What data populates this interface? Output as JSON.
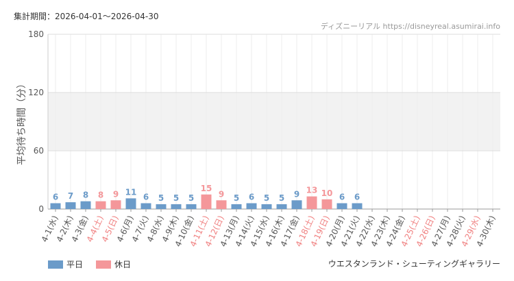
{
  "chart_data": {
    "type": "bar",
    "title": "集計期間：2026-04-01〜2026-04-30",
    "source": "ディズニーリアル https://disneyreal.asumirai.info",
    "subtitle": "ウエスタンランド・シューティングギャラリー",
    "y_label": "平均待ち時間（分）",
    "categories": [
      "4-1(水)",
      "4-2(木)",
      "4-3(金)",
      "4-4(土)",
      "4-5(日)",
      "4-6(月)",
      "4-7(火)",
      "4-8(水)",
      "4-9(木)",
      "4-10(金)",
      "4-11(土)",
      "4-12(日)",
      "4-13(月)",
      "4-14(火)",
      "4-15(水)",
      "4-16(木)",
      "4-17(金)",
      "4-18(土)",
      "4-19(日)",
      "4-20(月)",
      "4-21(火)",
      "4-22(水)",
      "4-23(木)",
      "4-24(金)",
      "4-25(土)",
      "4-26(日)",
      "4-27(月)",
      "4-28(火)",
      "4-29(水)",
      "4-30(木)"
    ],
    "label_colors": [
      "#555",
      "#555",
      "#555",
      "#f08080",
      "#f08080",
      "#555",
      "#555",
      "#555",
      "#555",
      "#555",
      "#f08080",
      "#f08080",
      "#555",
      "#555",
      "#555",
      "#555",
      "#555",
      "#f08080",
      "#f08080",
      "#555",
      "#555",
      "#555",
      "#555",
      "#555",
      "#f08080",
      "#f08080",
      "#555",
      "#555",
      "#f08080",
      "#555"
    ],
    "series": [
      {
        "name": "平日",
        "color": "#6b9bc9",
        "values": [
          6,
          7,
          8,
          null,
          null,
          11,
          6,
          5,
          5,
          5,
          null,
          null,
          5,
          6,
          5,
          5,
          9,
          null,
          null,
          6,
          6,
          null,
          null,
          null,
          null,
          null,
          null,
          null,
          null,
          null
        ]
      },
      {
        "name": "休日",
        "color": "#f4979a",
        "values": [
          null,
          null,
          null,
          8,
          9,
          null,
          null,
          null,
          null,
          null,
          15,
          9,
          null,
          null,
          null,
          null,
          null,
          13,
          10,
          null,
          null,
          null,
          null,
          null,
          null,
          null,
          null,
          null,
          null,
          null
        ]
      }
    ],
    "ylim": [
      0,
      180
    ],
    "yticks": [
      0,
      60,
      120,
      180
    ],
    "grid": true
  }
}
